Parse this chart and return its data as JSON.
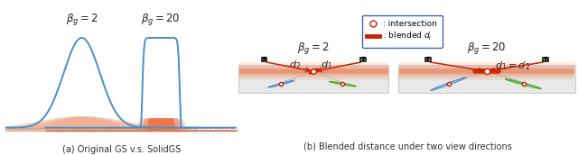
{
  "fig_width": 6.4,
  "fig_height": 1.72,
  "dpi": 100,
  "bg_color": "#ffffff",
  "panel_a": {
    "title": "(a) Original GS v.s. SolidGS",
    "curve1_label": "$\\beta_g = 2$",
    "curve2_label": "$\\beta_g = 20$",
    "curve_color": "#4a90c4",
    "fill_color_left": "#e87040",
    "fill_color_right": "#e87040",
    "dashed_color": "#5bb8e0"
  },
  "panel_b": {
    "title": "(b) Blended distance under two view directions",
    "beta2_label": "$\\beta_g = 2$",
    "beta20_label": "$\\beta_g = 20$",
    "legend_intersection": ": intersection",
    "legend_blended": ": blended $d_j$",
    "ray_color": "#cc2200",
    "orange_color": "#e87040",
    "surfel_green": "#55aa44",
    "surfel_blue": "#4488cc",
    "surfel_grey": "#888888",
    "intersection_color": "#cc2200",
    "dashed_color": "#aaaaaa",
    "box_color": "#e8e8e8",
    "box_edge": "#cccccc",
    "legend_edge": "#4466aa"
  }
}
